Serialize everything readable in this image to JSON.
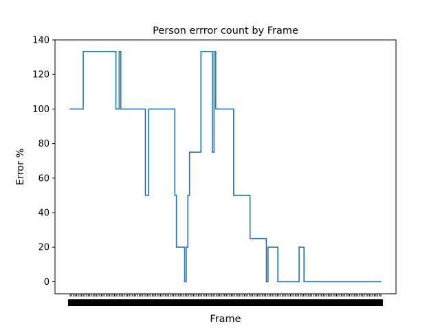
{
  "chart_data": {
    "type": "line",
    "title": "Person errror count by Frame",
    "xlabel": "Frame",
    "ylabel": "Error %",
    "ylim": [
      -7,
      140
    ],
    "yticks": [
      0,
      20,
      40,
      60,
      80,
      100,
      120,
      140
    ],
    "xtick_count": 190,
    "xtick_labels_note": "x tick labels are illegible (overlapping)",
    "grid": false,
    "legend": "none",
    "line_color": "#1f77b4",
    "series": [
      {
        "x": [
          0,
          8,
          8,
          28,
          28,
          30,
          30,
          31,
          31,
          32,
          32,
          46,
          46,
          48,
          48,
          64,
          64,
          65,
          65,
          70,
          70,
          71,
          71,
          72,
          72,
          73,
          73,
          80,
          80,
          87,
          87,
          88,
          88,
          89,
          89,
          90,
          90,
          100,
          100,
          110,
          110,
          120,
          120,
          121,
          121,
          127,
          127,
          140,
          140,
          143,
          143,
          190
        ],
        "y": [
          100,
          100,
          133.3,
          133.3,
          100,
          100,
          133.3,
          133.3,
          100,
          100,
          100,
          100,
          50,
          50,
          100,
          100,
          50,
          50,
          20,
          20,
          0,
          0,
          20,
          20,
          50,
          50,
          75,
          75,
          133.3,
          133.3,
          75,
          75,
          133.3,
          133.3,
          100,
          100,
          100,
          100,
          50,
          50,
          25,
          25,
          0,
          0,
          20,
          20,
          0,
          0,
          20,
          20,
          0,
          0
        ]
      }
    ]
  }
}
